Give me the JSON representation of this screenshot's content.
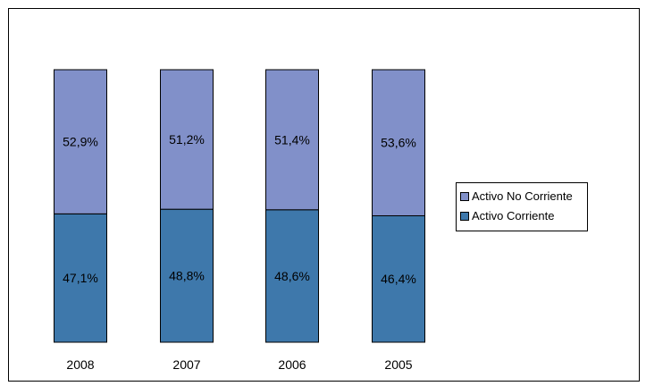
{
  "chart_data": {
    "type": "bar",
    "stacked": true,
    "percent": true,
    "categories": [
      "2008",
      "2007",
      "2006",
      "2005"
    ],
    "series": [
      {
        "name": "Activo Corriente",
        "values": [
          47.1,
          48.8,
          48.6,
          46.4
        ],
        "labels": [
          "47,1%",
          "48,8%",
          "48,6%",
          "46,4%"
        ],
        "color": "#3e78ab"
      },
      {
        "name": "Activo No Corriente",
        "values": [
          52.9,
          51.2,
          51.4,
          53.6
        ],
        "labels": [
          "52,9%",
          "51,2%",
          "51,4%",
          "53,6%"
        ],
        "color": "#8190c9"
      }
    ],
    "ylim": [
      0,
      100
    ],
    "grid": false,
    "legend_position": "right"
  },
  "legend": {
    "items": [
      {
        "label": "Activo No Corriente",
        "color": "#8190c9"
      },
      {
        "label": "Activo Corriente",
        "color": "#3e78ab"
      }
    ]
  }
}
